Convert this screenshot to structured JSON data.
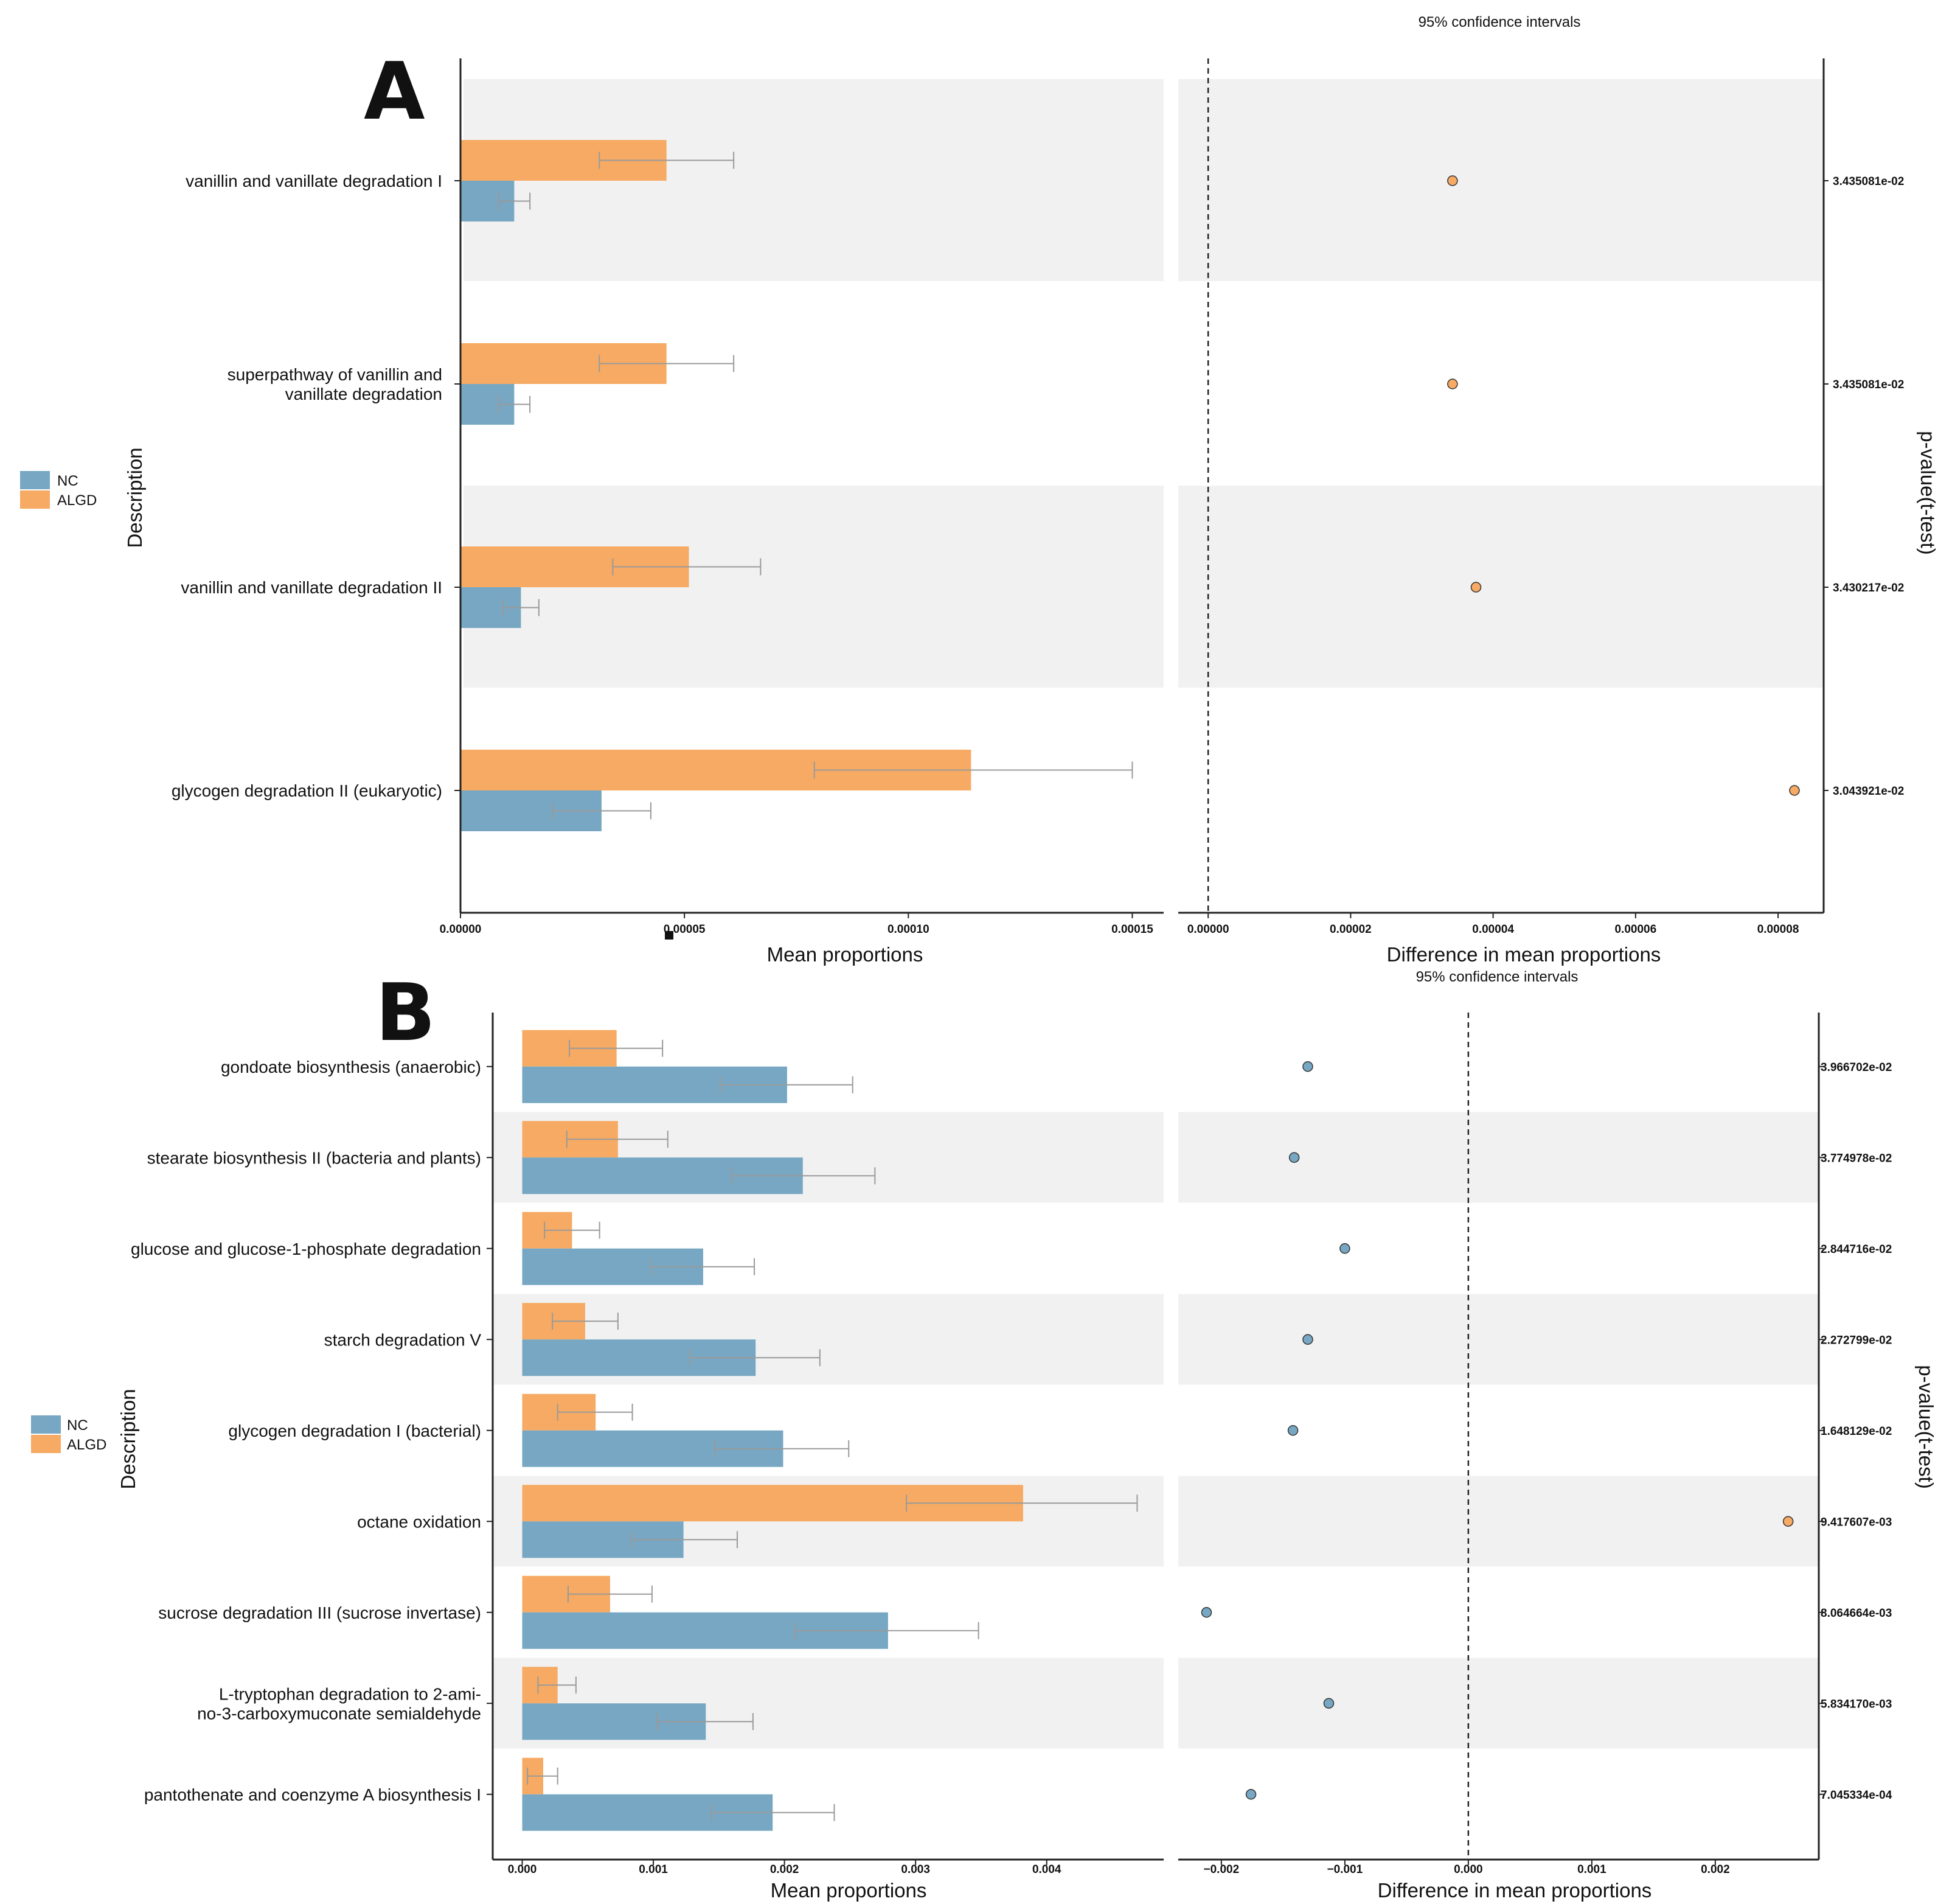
{
  "colors": {
    "nc": "#77a7c3",
    "algd": "#f6aa63",
    "band": "#f1f1f1",
    "axis": "#222222",
    "errorbar": "#9a9a9a"
  },
  "chart_data": [
    {
      "panel": "A",
      "type": "bar",
      "title": "95% confidence intervals",
      "ylabel": "Description",
      "xlabel_left": "Mean proportions",
      "xlabel_right": "Difference in mean proportions",
      "right_axis_label": "p-value(t-test)",
      "legend": [
        "NC",
        "ALGD"
      ],
      "categories": [
        "vanillin and vanillate degradation I",
        "superpathway of vanillin and vanillate degradation",
        "vanillin and vanillate degradation II",
        "glycogen degradation II (eukaryotic)"
      ],
      "category_lines": [
        [
          "vanillin and vanillate degradation I"
        ],
        [
          "superpathway of vanillin and",
          "vanillate degradation"
        ],
        [
          "vanillin and vanillate degradation II"
        ],
        [
          "glycogen degradation II (eukaryotic)"
        ]
      ],
      "banded": [
        true,
        false,
        true,
        false
      ],
      "mean_xlim": [
        0,
        0.000157
      ],
      "mean_ticks": [
        0,
        5e-05,
        0.0001,
        0.00015
      ],
      "mean_tick_labels": [
        "0.00000",
        "0.00005",
        "0.00010",
        "0.00015"
      ],
      "series": [
        {
          "name": "ALGD",
          "values": [
            4.6e-05,
            4.6e-05,
            5.1e-05,
            0.000114
          ],
          "err_low": [
            3.1e-05,
            3.1e-05,
            3.4e-05,
            7.9e-05
          ],
          "err_high": [
            6.1e-05,
            6.1e-05,
            6.7e-05,
            0.00015
          ]
        },
        {
          "name": "NC",
          "values": [
            1.2e-05,
            1.2e-05,
            1.35e-05,
            3.15e-05
          ],
          "err_low": [
            8.5e-06,
            8.5e-06,
            9.5e-06,
            2.05e-05
          ],
          "err_high": [
            1.55e-05,
            1.55e-05,
            1.75e-05,
            4.25e-05
          ]
        }
      ],
      "diff_xlim": [
        -4.2e-06,
        8.64e-05
      ],
      "diff_ticks": [
        0,
        2e-05,
        4e-05,
        6e-05,
        8e-05
      ],
      "diff_tick_labels": [
        "0.00000",
        "0.00002",
        "0.00004",
        "0.00006",
        "0.00008"
      ],
      "differences": [
        3.43e-05,
        3.43e-05,
        3.76e-05,
        8.23e-05
      ],
      "pvalues": [
        "3.435081e-02",
        "3.435081e-02",
        "3.430217e-02",
        "3.043921e-02"
      ]
    },
    {
      "panel": "B",
      "type": "bar",
      "title": "95% confidence intervals",
      "ylabel": "Description",
      "xlabel_left": "Mean proportions",
      "xlabel_right": "Difference in mean proportions",
      "right_axis_label": "p-value(t-test)",
      "legend": [
        "NC",
        "ALGD"
      ],
      "categories": [
        "gondoate biosynthesis (anaerobic)",
        "stearate biosynthesis II (bacteria and plants)",
        "glucose and glucose-1-phosphate degradation",
        "starch degradation V",
        "glycogen degradation I (bacterial)",
        "octane oxidation",
        "sucrose degradation III (sucrose invertase)",
        "L-tryptophan degradation to 2-amino-3-carboxymuconate semialdehyde",
        "pantothenate and coenzyme A biosynthesis I"
      ],
      "category_lines": [
        [
          "gondoate biosynthesis (anaerobic)"
        ],
        [
          "stearate biosynthesis II (bacteria and plants)"
        ],
        [
          "glucose and glucose-1-phosphate degradation"
        ],
        [
          "starch degradation V"
        ],
        [
          "glycogen degradation I (bacterial)"
        ],
        [
          "octane oxidation"
        ],
        [
          "sucrose degradation III (sucrose invertase)"
        ],
        [
          "L-tryptophan degradation to 2-ami-",
          "no-3-carboxymuconate semialdehyde"
        ],
        [
          "pantothenate and coenzyme A biosynthesis I"
        ]
      ],
      "banded": [
        false,
        true,
        false,
        true,
        false,
        true,
        false,
        true,
        false
      ],
      "mean_xlim": [
        -0.000225,
        0.004892
      ],
      "mean_ticks": [
        0,
        0.001,
        0.002,
        0.003,
        0.004
      ],
      "mean_tick_labels": [
        "0.000",
        "0.001",
        "0.002",
        "0.003",
        "0.004"
      ],
      "series": [
        {
          "name": "ALGD",
          "values": [
            0.00072,
            0.00073,
            0.00038,
            0.00048,
            0.00056,
            0.00382,
            0.00067,
            0.00027,
            0.00016
          ],
          "err_low": [
            0.00036,
            0.00034,
            0.00017,
            0.00023,
            0.00027,
            0.00293,
            0.00035,
            0.00012,
            4e-05
          ],
          "err_high": [
            0.00107,
            0.00111,
            0.00059,
            0.00073,
            0.00084,
            0.00469,
            0.00099,
            0.00041,
            0.00027
          ]
        },
        {
          "name": "NC",
          "values": [
            0.00202,
            0.00214,
            0.00138,
            0.00178,
            0.00199,
            0.00123,
            0.00279,
            0.0014,
            0.00191
          ],
          "err_low": [
            0.00151,
            0.0016,
            0.00098,
            0.00128,
            0.00147,
            0.00083,
            0.00208,
            0.00103,
            0.00144
          ],
          "err_high": [
            0.00252,
            0.00269,
            0.00177,
            0.00227,
            0.00249,
            0.00164,
            0.00348,
            0.00176,
            0.00238
          ]
        }
      ],
      "diff_xlim": [
        -0.002349,
        0.002838
      ],
      "diff_ticks": [
        -0.002,
        -0.001,
        0,
        0.001,
        0.002
      ],
      "diff_tick_labels": [
        "−0.002",
        "−0.001",
        "0.000",
        "0.001",
        "0.002"
      ],
      "differences": [
        -0.0013,
        -0.00141,
        -0.001,
        -0.0013,
        -0.00142,
        0.00259,
        -0.00212,
        -0.00113,
        -0.00176
      ],
      "pvalues": [
        "3.966702e-02",
        "3.774978e-02",
        "2.844716e-02",
        "2.272799e-02",
        "1.648129e-02",
        "9.417607e-03",
        "8.064664e-03",
        "5.834170e-03",
        "7.045334e-04"
      ]
    }
  ]
}
